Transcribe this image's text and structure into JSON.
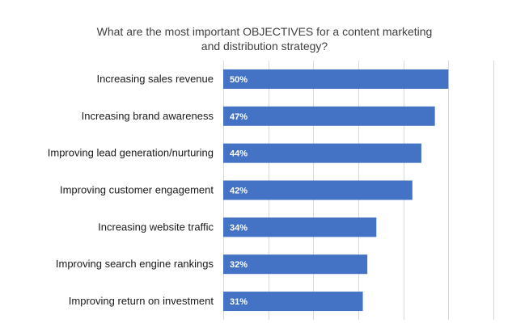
{
  "chart_data": {
    "type": "bar",
    "orientation": "horizontal",
    "title_lines": [
      "What are the most important OBJECTIVES for a content marketing",
      "and distribution strategy?"
    ],
    "xlabel": "",
    "ylabel": "",
    "xlim": [
      0,
      60
    ],
    "grid": true,
    "legend": "none",
    "bar_color": "#4472c4",
    "categories": [
      "Increasing sales revenue",
      "Increasing brand awareness",
      "Improving lead generation/nurturing",
      "Improving customer engagement",
      "Increasing website traffic",
      "Improving search engine rankings",
      "Improving return on investment"
    ],
    "values": [
      50,
      47,
      44,
      42,
      34,
      32,
      31
    ],
    "value_labels": [
      "50%",
      "47%",
      "44%",
      "42%",
      "34%",
      "32%",
      "31%"
    ]
  }
}
